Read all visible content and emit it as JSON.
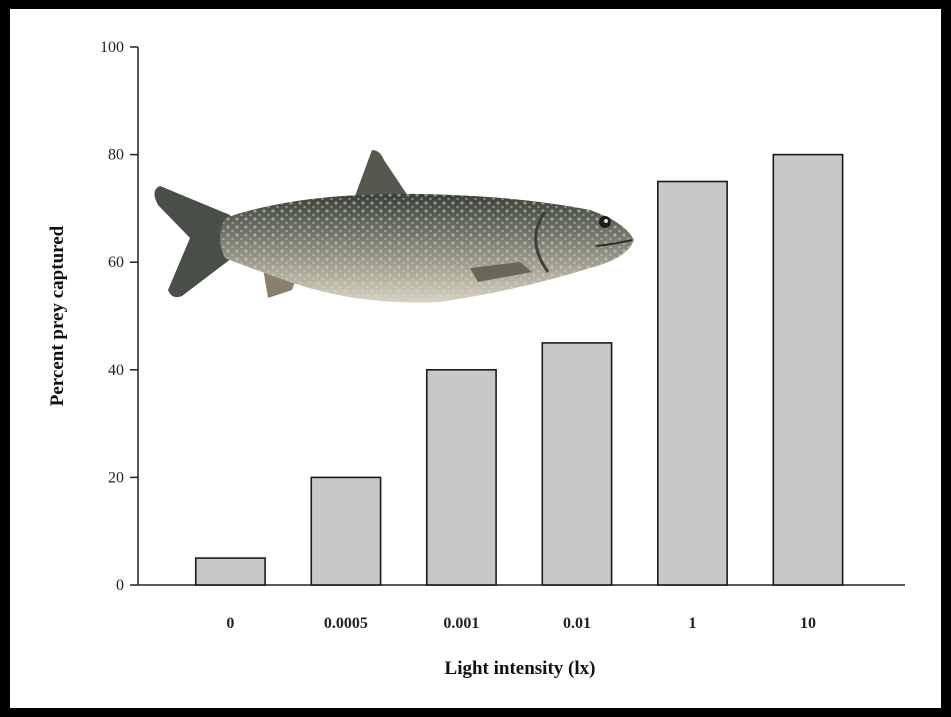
{
  "chart_data": {
    "type": "bar",
    "categories": [
      "0",
      "0.0005",
      "0.001",
      "0.01",
      "1",
      "10"
    ],
    "values": [
      5,
      20,
      40,
      45,
      75,
      80
    ],
    "title": "",
    "xlabel": "Light intensity (lx)",
    "ylabel": "Percent prey captured",
    "ylim": [
      0,
      100
    ],
    "yticks": [
      "0",
      "20",
      "40",
      "60",
      "80",
      "100"
    ],
    "grid": false,
    "legend": "none",
    "bar_color": "#c8c8c8",
    "bar_edge_color": "#1a1a1a",
    "frame_color": "#000000",
    "illustration": "lake-trout-fish"
  }
}
